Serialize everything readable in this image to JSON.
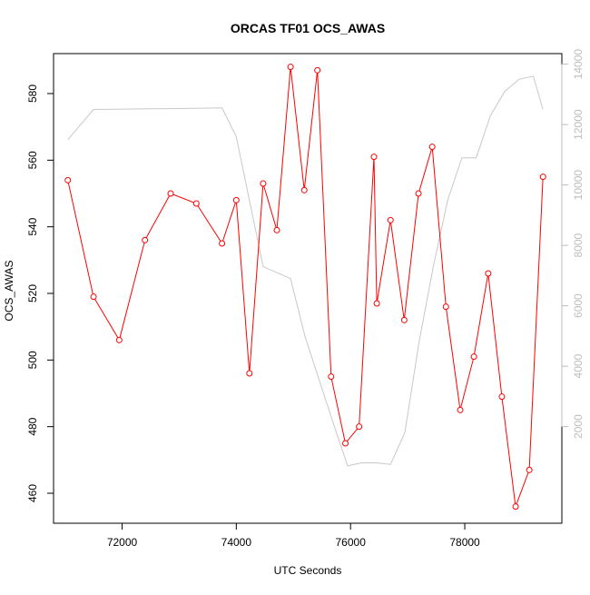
{
  "chart_data": {
    "type": "line",
    "title": "ORCAS TF01 OCS_AWAS",
    "xlabel": "UTC Seconds",
    "ylabel": "OCS_AWAS",
    "xlim": [
      70800,
      79700
    ],
    "ylim": [
      451,
      592
    ],
    "y2lim": [
      -1200,
      14350
    ],
    "x_ticks": [
      72000,
      74000,
      76000,
      78000
    ],
    "y_ticks": [
      460,
      480,
      500,
      520,
      540,
      560,
      580
    ],
    "y2_ticks": [
      2000,
      4000,
      6000,
      8000,
      10000,
      12000,
      14000
    ],
    "grid": false,
    "colors": {
      "primary": "#ff0000",
      "secondary": "#c8c8c8",
      "axes": "#000000",
      "right_axis": "#bdbdbd"
    },
    "series": [
      {
        "role": "primary",
        "axis": "left",
        "marker": "open-circle",
        "x": [
          71050,
          71500,
          71950,
          72400,
          72850,
          73300,
          73750,
          74000,
          74230,
          74470,
          74710,
          74950,
          75190,
          75420,
          75660,
          75910,
          76150,
          76410,
          76460,
          76700,
          76940,
          77190,
          77430,
          77670,
          77920,
          78160,
          78410,
          78650,
          78890,
          79130,
          79370
        ],
        "values": [
          554,
          519,
          506,
          536,
          550,
          547,
          535,
          548,
          496,
          553,
          539,
          588,
          551,
          587,
          495,
          475,
          480,
          561,
          517,
          542,
          512,
          550,
          564,
          516,
          485,
          501,
          526,
          489,
          456,
          467,
          555
        ]
      },
      {
        "role": "secondary",
        "axis": "right",
        "marker": "none",
        "x": [
          71050,
          71500,
          72500,
          73000,
          73750,
          74000,
          74250,
          74470,
          74950,
          75200,
          75700,
          75950,
          76200,
          76450,
          76700,
          76950,
          77200,
          77450,
          77700,
          77950,
          78200,
          78450,
          78700,
          78950,
          79200,
          79370
        ],
        "values": [
          11500,
          12500,
          12520,
          12530,
          12550,
          11600,
          9300,
          7300,
          6900,
          5000,
          2100,
          700,
          800,
          800,
          750,
          1800,
          4800,
          7300,
          9500,
          10900,
          10900,
          12300,
          13100,
          13500,
          13600,
          12500
        ]
      }
    ]
  }
}
